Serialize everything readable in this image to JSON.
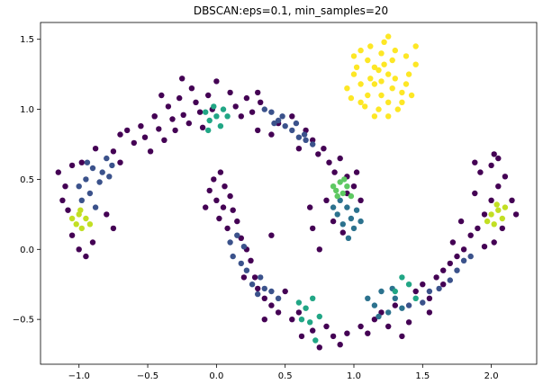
{
  "chart_data": {
    "type": "scatter",
    "title": "DBSCAN:eps=0.1, min_samples=20",
    "xlabel": "",
    "ylabel": "",
    "xlim": [
      -1.28,
      2.33
    ],
    "ylim": [
      -0.82,
      1.62
    ],
    "xticks": [
      -1.0,
      -0.5,
      0.0,
      0.5,
      1.0,
      1.5,
      2.0
    ],
    "xtick_labels": [
      "−1.0",
      "−0.5",
      "0.0",
      "0.5",
      "1.0",
      "1.5",
      "2.0"
    ],
    "yticks": [
      -0.5,
      0.0,
      0.5,
      1.0,
      1.5
    ],
    "ytick_labels": [
      "−0.5",
      "0.0",
      "0.5",
      "1.0",
      "1.5"
    ],
    "grid": false,
    "legend": "none",
    "colors": {
      "noise": "#440154",
      "c1": "#3b528b",
      "c2": "#2c728e",
      "c3": "#21a685",
      "c4": "#5ec962",
      "c5": "#c2df23",
      "c6": "#fde725"
    },
    "series": [
      {
        "color": "#440154",
        "points": [
          [
            -0.88,
            0.72
          ],
          [
            -0.75,
            0.7
          ],
          [
            -0.7,
            0.62
          ],
          [
            -0.65,
            0.85
          ],
          [
            -0.6,
            0.76
          ],
          [
            -0.55,
            0.88
          ],
          [
            -0.52,
            0.8
          ],
          [
            -0.48,
            0.7
          ],
          [
            -0.45,
            0.95
          ],
          [
            -0.42,
            0.86
          ],
          [
            -0.38,
            0.78
          ],
          [
            -0.35,
            1.02
          ],
          [
            -0.32,
            0.93
          ],
          [
            -0.3,
            0.85
          ],
          [
            -0.27,
            1.08
          ],
          [
            -0.24,
            0.96
          ],
          [
            -0.2,
            0.9
          ],
          [
            -0.18,
            1.15
          ],
          [
            -0.15,
            1.05
          ],
          [
            -0.12,
            0.98
          ],
          [
            -0.1,
            0.87
          ],
          [
            -0.06,
            1.1
          ],
          [
            -0.03,
            1.0
          ],
          [
            0.1,
            1.12
          ],
          [
            0.14,
            1.02
          ],
          [
            0.18,
            0.95
          ],
          [
            0.22,
            1.08
          ],
          [
            0.26,
            0.98
          ],
          [
            0.3,
            1.12
          ],
          [
            0.55,
            0.95
          ],
          [
            0.6,
            0.72
          ],
          [
            0.65,
            0.85
          ],
          [
            0.7,
            0.78
          ],
          [
            0.74,
            0.68
          ],
          [
            0.78,
            0.72
          ],
          [
            0.82,
            0.62
          ],
          [
            0.86,
            0.55
          ],
          [
            0.9,
            0.65
          ],
          [
            0.95,
            0.52
          ],
          [
            1.0,
            0.45
          ],
          [
            1.05,
            0.35
          ],
          [
            1.02,
            0.55
          ],
          [
            0.95,
            0.4
          ],
          [
            0.8,
            0.35
          ],
          [
            0.85,
            0.2
          ],
          [
            0.92,
            0.12
          ],
          [
            -0.7,
            0.82
          ],
          [
            -0.4,
            1.1
          ],
          [
            -0.25,
            1.22
          ],
          [
            0.0,
            1.2
          ],
          [
            0.3,
            0.85
          ],
          [
            0.4,
            0.82
          ],
          [
            -1.1,
            0.45
          ],
          [
            -1.12,
            0.35
          ],
          [
            -1.08,
            0.28
          ],
          [
            -1.05,
            0.1
          ],
          [
            -1.0,
            0.0
          ],
          [
            -0.95,
            -0.05
          ],
          [
            -0.9,
            0.05
          ],
          [
            -0.8,
            0.25
          ],
          [
            -0.75,
            0.15
          ],
          [
            -1.15,
            0.55
          ],
          [
            -1.05,
            0.6
          ],
          [
            -0.98,
            0.62
          ],
          [
            -0.02,
            0.5
          ],
          [
            -0.05,
            0.42
          ],
          [
            0.0,
            0.35
          ],
          [
            0.05,
            0.3
          ],
          [
            0.02,
            0.22
          ],
          [
            0.08,
            0.15
          ],
          [
            0.06,
            0.45
          ],
          [
            0.1,
            0.38
          ],
          [
            0.12,
            0.28
          ],
          [
            0.15,
            0.2
          ],
          [
            0.03,
            0.55
          ],
          [
            -0.08,
            0.3
          ],
          [
            0.18,
            0.08
          ],
          [
            0.22,
            0.0
          ],
          [
            0.25,
            -0.08
          ],
          [
            0.28,
            -0.2
          ],
          [
            0.3,
            -0.28
          ],
          [
            0.35,
            -0.35
          ],
          [
            0.4,
            -0.4
          ],
          [
            0.45,
            -0.45
          ],
          [
            0.55,
            -0.5
          ],
          [
            0.5,
            -0.3
          ],
          [
            0.6,
            -0.45
          ],
          [
            0.62,
            -0.62
          ],
          [
            0.7,
            -0.58
          ],
          [
            0.75,
            -0.7
          ],
          [
            0.8,
            -0.55
          ],
          [
            0.85,
            -0.62
          ],
          [
            0.9,
            -0.68
          ],
          [
            0.95,
            -0.6
          ],
          [
            1.05,
            -0.55
          ],
          [
            1.1,
            -0.6
          ],
          [
            1.15,
            -0.5
          ],
          [
            1.2,
            -0.45
          ],
          [
            1.25,
            -0.55
          ],
          [
            1.3,
            -0.4
          ],
          [
            1.45,
            -0.3
          ],
          [
            1.5,
            -0.25
          ],
          [
            1.55,
            -0.35
          ],
          [
            1.6,
            -0.2
          ],
          [
            1.65,
            -0.15
          ],
          [
            1.7,
            -0.1
          ],
          [
            1.75,
            -0.05
          ],
          [
            1.8,
            0.0
          ],
          [
            1.85,
            0.1
          ],
          [
            1.9,
            0.15
          ],
          [
            1.95,
            0.25
          ],
          [
            2.0,
            0.35
          ],
          [
            2.05,
            0.45
          ],
          [
            2.1,
            0.52
          ],
          [
            2.15,
            0.35
          ],
          [
            2.18,
            0.25
          ],
          [
            2.08,
            0.15
          ],
          [
            2.02,
            0.05
          ],
          [
            1.95,
            0.02
          ],
          [
            1.88,
            0.4
          ],
          [
            1.92,
            0.55
          ],
          [
            2.0,
            0.6
          ],
          [
            2.05,
            0.65
          ],
          [
            1.88,
            0.62
          ],
          [
            2.02,
            0.68
          ],
          [
            1.78,
            0.2
          ],
          [
            1.72,
            0.05
          ],
          [
            1.65,
            -0.25
          ],
          [
            1.55,
            -0.45
          ],
          [
            1.4,
            -0.52
          ],
          [
            1.35,
            -0.62
          ],
          [
            0.35,
            -0.5
          ],
          [
            0.2,
            -0.2
          ],
          [
            0.4,
            0.1
          ],
          [
            0.7,
            0.15
          ],
          [
            0.75,
            0.0
          ],
          [
            0.68,
            0.3
          ],
          [
            -0.45,
            0.95
          ],
          [
            0.32,
            1.05
          ],
          [
            0.45,
            0.9
          ]
        ]
      },
      {
        "color": "#3b528b",
        "points": [
          [
            -1.0,
            0.45
          ],
          [
            -0.98,
            0.35
          ],
          [
            -0.95,
            0.5
          ],
          [
            -0.92,
            0.4
          ],
          [
            -0.9,
            0.58
          ],
          [
            -0.88,
            0.3
          ],
          [
            -0.85,
            0.48
          ],
          [
            -0.83,
            0.55
          ],
          [
            -0.8,
            0.65
          ],
          [
            -0.78,
            0.52
          ],
          [
            -0.76,
            0.6
          ],
          [
            -0.94,
            0.62
          ],
          [
            0.35,
            1.0
          ],
          [
            0.4,
            0.98
          ],
          [
            0.45,
            0.92
          ],
          [
            0.5,
            0.88
          ],
          [
            0.55,
            0.85
          ],
          [
            0.6,
            0.8
          ],
          [
            0.65,
            0.78
          ],
          [
            0.7,
            0.75
          ],
          [
            0.48,
            0.95
          ],
          [
            0.42,
            0.9
          ],
          [
            0.58,
            0.9
          ],
          [
            0.64,
            0.82
          ],
          [
            0.1,
            0.05
          ],
          [
            0.12,
            -0.05
          ],
          [
            0.18,
            -0.1
          ],
          [
            0.22,
            -0.15
          ],
          [
            0.26,
            -0.25
          ],
          [
            0.3,
            -0.32
          ],
          [
            0.35,
            -0.28
          ],
          [
            0.4,
            -0.3
          ],
          [
            0.45,
            -0.35
          ],
          [
            0.15,
            0.1
          ],
          [
            0.2,
            0.02
          ],
          [
            0.32,
            -0.2
          ],
          [
            1.4,
            -0.4
          ],
          [
            1.5,
            -0.38
          ],
          [
            1.55,
            -0.3
          ],
          [
            1.62,
            -0.28
          ],
          [
            1.7,
            -0.22
          ],
          [
            1.75,
            -0.15
          ],
          [
            1.8,
            -0.08
          ],
          [
            1.85,
            -0.05
          ]
        ]
      },
      {
        "color": "#2c728e",
        "points": [
          [
            0.88,
            0.25
          ],
          [
            0.92,
            0.18
          ],
          [
            0.95,
            0.3
          ],
          [
            0.98,
            0.22
          ],
          [
            1.0,
            0.15
          ],
          [
            1.02,
            0.28
          ],
          [
            0.9,
            0.35
          ],
          [
            0.96,
            0.08
          ],
          [
            1.05,
            0.2
          ],
          [
            0.85,
            0.3
          ],
          [
            1.1,
            -0.35
          ],
          [
            1.15,
            -0.4
          ],
          [
            1.2,
            -0.3
          ],
          [
            1.25,
            -0.45
          ],
          [
            1.3,
            -0.35
          ],
          [
            1.35,
            -0.42
          ],
          [
            1.18,
            -0.48
          ],
          [
            1.28,
            -0.28
          ]
        ]
      },
      {
        "color": "#21a685",
        "points": [
          [
            -0.08,
            0.98
          ],
          [
            -0.05,
            0.92
          ],
          [
            -0.02,
            1.02
          ],
          [
            0.0,
            0.95
          ],
          [
            0.03,
            0.88
          ],
          [
            0.05,
            1.0
          ],
          [
            0.08,
            0.95
          ],
          [
            -0.06,
            0.85
          ],
          [
            0.6,
            -0.38
          ],
          [
            0.65,
            -0.42
          ],
          [
            0.7,
            -0.35
          ],
          [
            0.75,
            -0.48
          ],
          [
            0.68,
            -0.52
          ],
          [
            0.72,
            -0.65
          ],
          [
            0.62,
            -0.5
          ],
          [
            1.3,
            -0.3
          ],
          [
            1.35,
            -0.2
          ],
          [
            1.4,
            -0.25
          ],
          [
            1.45,
            -0.35
          ]
        ]
      },
      {
        "color": "#5ec962",
        "points": [
          [
            0.85,
            0.45
          ],
          [
            0.88,
            0.38
          ],
          [
            0.9,
            0.48
          ],
          [
            0.92,
            0.4
          ],
          [
            0.95,
            0.45
          ],
          [
            0.98,
            0.38
          ],
          [
            0.93,
            0.5
          ],
          [
            0.87,
            0.42
          ]
        ]
      },
      {
        "color": "#c2df23",
        "points": [
          [
            -1.05,
            0.22
          ],
          [
            -1.02,
            0.18
          ],
          [
            -1.0,
            0.25
          ],
          [
            -0.98,
            0.15
          ],
          [
            -0.95,
            0.22
          ],
          [
            -0.92,
            0.18
          ],
          [
            -0.99,
            0.28
          ],
          [
            2.0,
            0.25
          ],
          [
            2.02,
            0.18
          ],
          [
            2.05,
            0.28
          ],
          [
            2.08,
            0.22
          ],
          [
            2.1,
            0.3
          ],
          [
            1.97,
            0.2
          ],
          [
            2.04,
            0.32
          ]
        ]
      },
      {
        "color": "#fde725",
        "points": [
          [
            1.2,
            1.2
          ],
          [
            1.1,
            1.1
          ],
          [
            1.15,
            1.3
          ],
          [
            1.25,
            1.05
          ],
          [
            1.3,
            1.22
          ],
          [
            1.05,
            1.18
          ],
          [
            1.35,
            1.12
          ],
          [
            1.2,
            1.4
          ],
          [
            1.1,
            1.35
          ],
          [
            1.28,
            1.35
          ],
          [
            1.0,
            1.25
          ],
          [
            1.4,
            1.25
          ],
          [
            1.18,
            1.0
          ],
          [
            1.08,
            1.02
          ],
          [
            1.32,
            1.0
          ],
          [
            0.95,
            1.15
          ],
          [
            1.42,
            1.1
          ],
          [
            1.22,
            1.48
          ],
          [
            1.12,
            1.45
          ],
          [
            1.38,
            1.38
          ],
          [
            1.0,
            1.38
          ],
          [
            1.45,
            1.32
          ],
          [
            1.25,
            0.95
          ],
          [
            1.15,
            0.95
          ],
          [
            1.05,
            1.05
          ],
          [
            1.35,
            1.05
          ],
          [
            1.2,
            1.1
          ],
          [
            1.25,
            1.25
          ],
          [
            1.15,
            1.18
          ],
          [
            1.18,
            1.28
          ],
          [
            1.28,
            1.15
          ],
          [
            1.12,
            1.22
          ],
          [
            1.22,
            1.32
          ],
          [
            1.3,
            1.42
          ],
          [
            1.02,
            1.3
          ],
          [
            0.98,
            1.08
          ],
          [
            1.38,
            1.18
          ],
          [
            1.45,
            1.45
          ],
          [
            1.05,
            1.42
          ],
          [
            1.25,
            1.52
          ]
        ]
      }
    ]
  }
}
